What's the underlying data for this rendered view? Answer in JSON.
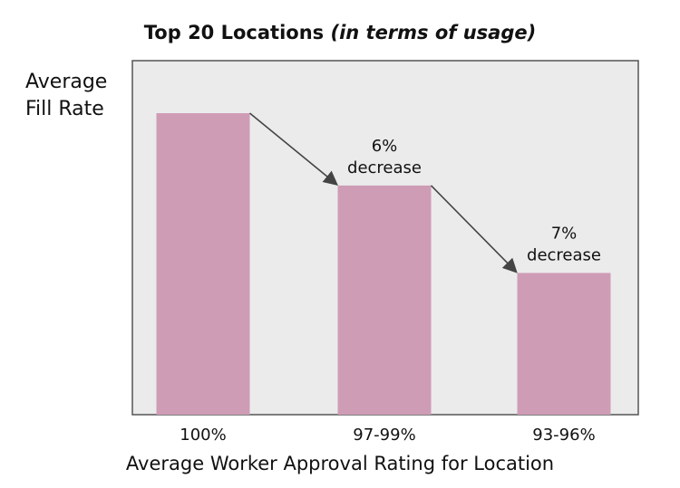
{
  "title": {
    "prefix": "Top 20 Locations",
    "suffix": "(in terms of usage)"
  },
  "chart_data": {
    "type": "bar",
    "title": "Top 20 Locations (in terms of usage)",
    "ylabel_lines": [
      "Average",
      "Fill Rate"
    ],
    "xlabel": "Average Worker Approval Rating for Location",
    "categories": [
      "100%",
      "97-99%",
      "93-96%"
    ],
    "values": [
      1.0,
      0.76,
      0.47
    ],
    "value_scale": "relative height (no y-axis ticks shown)",
    "annotations": [
      {
        "from": 0,
        "to": 1,
        "lines": [
          "6%",
          "decrease"
        ]
      },
      {
        "from": 1,
        "to": 2,
        "lines": [
          "7%",
          "decrease"
        ]
      }
    ],
    "grid": false,
    "colors": {
      "bar": "#cf9cb6",
      "plot_bg": "#ebebeb",
      "border": "#555555",
      "arrow": "#444444"
    }
  }
}
